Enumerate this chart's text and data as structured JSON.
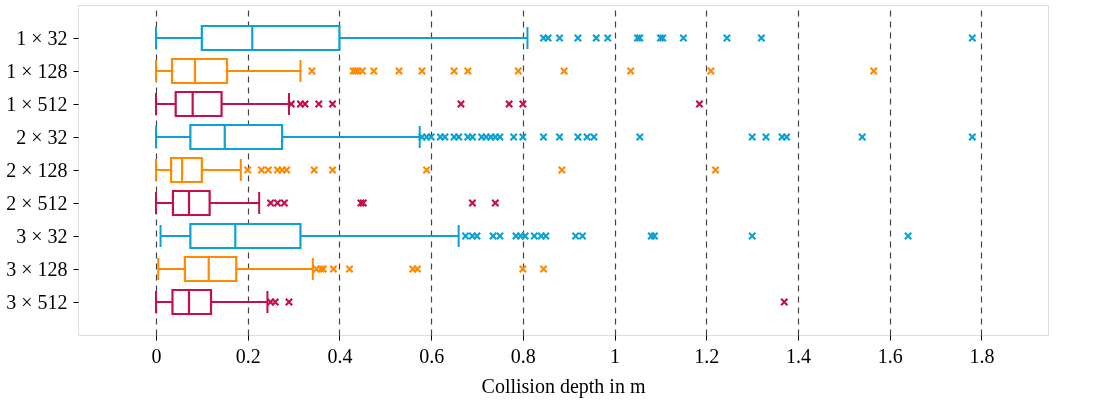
{
  "chart_data": {
    "type": "box",
    "xlabel": "Collision depth in m",
    "orientation": "horizontal",
    "categories": [
      "1 × 32",
      "1 × 128",
      "1 × 512",
      "2 × 32",
      "2 × 128",
      "2 × 512",
      "3 × 32",
      "3 × 128",
      "3 × 512"
    ],
    "colors": [
      "#0aa2d4",
      "#ff8a00",
      "#c40f4f",
      "#0aa2d4",
      "#ff8a00",
      "#c40f4f",
      "#0aa2d4",
      "#ff8a00",
      "#c40f4f"
    ],
    "boxes": [
      {
        "low": 0,
        "q1": 0.1,
        "median": 0.21,
        "q3": 0.4,
        "high": 0.81,
        "outliers": [
          0.845,
          0.855,
          0.88,
          0.92,
          0.96,
          0.985,
          1.05,
          1.055,
          1.1,
          1.105,
          1.15,
          1.245,
          1.32,
          1.78
        ]
      },
      {
        "low": 0,
        "q1": 0.035,
        "median": 0.085,
        "q3": 0.155,
        "high": 0.315,
        "outliers": [
          0.34,
          0.43,
          0.435,
          0.44,
          0.45,
          0.475,
          0.53,
          0.58,
          0.65,
          0.68,
          0.79,
          0.89,
          1.035,
          1.21,
          1.565
        ]
      },
      {
        "low": 0,
        "q1": 0.043,
        "median": 0.08,
        "q3": 0.143,
        "high": 0.29,
        "outliers": [
          0.295,
          0.315,
          0.325,
          0.355,
          0.385,
          0.665,
          0.77,
          0.8,
          1.185
        ]
      },
      {
        "low": 0,
        "q1": 0.075,
        "median": 0.15,
        "q3": 0.275,
        "high": 0.575,
        "outliers": [
          0.58,
          0.59,
          0.6,
          0.62,
          0.63,
          0.65,
          0.66,
          0.68,
          0.69,
          0.71,
          0.72,
          0.73,
          0.74,
          0.75,
          0.78,
          0.8,
          0.845,
          0.88,
          0.92,
          0.94,
          0.955,
          1.055,
          1.3,
          1.33,
          1.365,
          1.375,
          1.54,
          1.78
        ]
      },
      {
        "low": 0,
        "q1": 0.033,
        "median": 0.057,
        "q3": 0.1,
        "high": 0.185,
        "outliers": [
          0.2,
          0.23,
          0.245,
          0.265,
          0.275,
          0.285,
          0.345,
          0.385,
          0.59,
          0.885,
          1.22
        ]
      },
      {
        "low": 0,
        "q1": 0.037,
        "median": 0.072,
        "q3": 0.117,
        "high": 0.225,
        "outliers": [
          0.25,
          0.265,
          0.28,
          0.447,
          0.452,
          0.69,
          0.74
        ]
      },
      {
        "low": 0.01,
        "q1": 0.075,
        "median": 0.173,
        "q3": 0.315,
        "high": 0.66,
        "outliers": [
          0.675,
          0.69,
          0.7,
          0.735,
          0.75,
          0.785,
          0.795,
          0.805,
          0.825,
          0.84,
          0.85,
          0.915,
          0.93,
          1.08,
          1.087,
          1.3,
          1.64
        ]
      },
      {
        "low": 0.005,
        "q1": 0.063,
        "median": 0.115,
        "q3": 0.175,
        "high": 0.342,
        "outliers": [
          0.35,
          0.36,
          0.365,
          0.387,
          0.422,
          0.56,
          0.57,
          0.8,
          0.845
        ]
      },
      {
        "low": 0,
        "q1": 0.036,
        "median": 0.072,
        "q3": 0.12,
        "high": 0.243,
        "outliers": [
          0.25,
          0.26,
          0.29,
          1.37
        ]
      }
    ],
    "xlim": [
      -0.17,
      1.945
    ],
    "xticks": [
      0,
      0.2,
      0.4,
      0.6,
      0.8,
      1,
      1.2,
      1.4,
      1.6,
      1.8
    ],
    "grid": "x",
    "marker": "cross"
  }
}
